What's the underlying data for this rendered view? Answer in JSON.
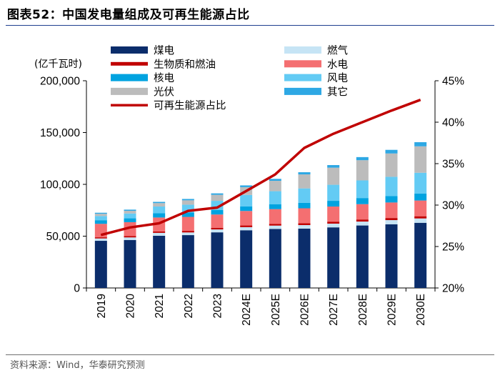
{
  "header": {
    "title": "图表52：中国发电量组成及可再生能源占比"
  },
  "footer": {
    "source": "资料来源：Wind，华泰研究预测"
  },
  "colors": {
    "coal": "#0b2d6b",
    "gas": "#c6e4f5",
    "bio": "#c00000",
    "hydro": "#f46f71",
    "nuclear": "#00a3e0",
    "wind": "#63cbf4",
    "solar": "#bcbcbc",
    "other": "#2ea8e4",
    "ratio_line": "#c00000",
    "title_rule": "#1f3f8f"
  },
  "chart_data": {
    "type": "bar",
    "stacked": true,
    "ylabel": "(亿千瓦时)",
    "ylim": [
      0,
      200000
    ],
    "y_ticks": [
      "0",
      "50,000",
      "100,000",
      "150,000",
      "200,000"
    ],
    "y2lim": [
      0.2,
      0.45
    ],
    "y2_ticks": [
      "20%",
      "25%",
      "30%",
      "35%",
      "40%",
      "45%"
    ],
    "categories": [
      "2019",
      "2020",
      "2021",
      "2022",
      "2023",
      "2024E",
      "2025E",
      "2026E",
      "2027E",
      "2028E",
      "2029E",
      "2030E"
    ],
    "legend_position": "top",
    "series": [
      {
        "name": "煤电",
        "key": "coal",
        "values": [
          45500,
          46300,
          50400,
          51000,
          53700,
          55700,
          57000,
          57300,
          58500,
          60300,
          61500,
          62900
        ]
      },
      {
        "name": "燃气",
        "key": "gas",
        "values": [
          2300,
          2500,
          2800,
          2600,
          2800,
          3000,
          3200,
          3400,
          3600,
          3800,
          4000,
          4200
        ]
      },
      {
        "name": "生物质和燃油",
        "key": "bio",
        "values": [
          1100,
          1200,
          1400,
          1500,
          1600,
          1600,
          1700,
          1800,
          1900,
          2000,
          2000,
          2100
        ]
      },
      {
        "name": "水电",
        "key": "hydro",
        "values": [
          13000,
          13500,
          13400,
          13500,
          12800,
          14000,
          14200,
          14400,
          14600,
          14800,
          15000,
          15200
        ]
      },
      {
        "name": "核电",
        "key": "nuclear",
        "values": [
          3500,
          3700,
          4100,
          4200,
          4300,
          4500,
          4800,
          5200,
          5500,
          5900,
          6300,
          6800
        ]
      },
      {
        "name": "风电",
        "key": "wind",
        "values": [
          4000,
          4700,
          6500,
          7600,
          8900,
          11000,
          12500,
          14000,
          15500,
          17000,
          18500,
          20000
        ]
      },
      {
        "name": "光伏",
        "key": "solar",
        "values": [
          2200,
          2600,
          3300,
          4200,
          5800,
          7500,
          10000,
          13500,
          16500,
          19500,
          22500,
          25500
        ]
      },
      {
        "name": "其它",
        "key": "other",
        "values": [
          1000,
          1100,
          1200,
          1300,
          1400,
          1700,
          1900,
          2100,
          2500,
          3000,
          3500,
          4000
        ]
      }
    ],
    "line_series": {
      "name": "可再生能源占比",
      "axis": "right",
      "values": [
        0.264,
        0.273,
        0.278,
        0.293,
        0.297,
        0.317,
        0.337,
        0.369,
        0.386,
        0.4,
        0.414,
        0.427
      ]
    }
  }
}
